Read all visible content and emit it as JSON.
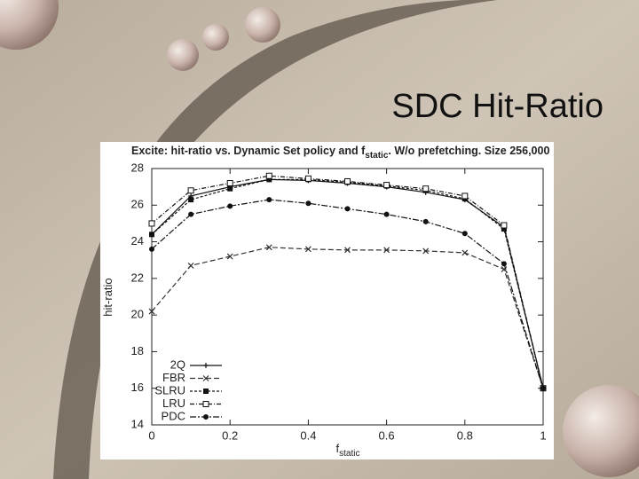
{
  "slide_title": "SDC Hit-Ratio",
  "chart_data": {
    "type": "line",
    "title": [
      "Excite: hit-ratio vs. Dynamic Set policy and f",
      "static",
      ". W/o prefetching. Size 256,000"
    ],
    "x_label": [
      "f",
      "static"
    ],
    "y_label": "hit-ratio",
    "x": [
      0,
      0.1,
      0.2,
      0.3,
      0.4,
      0.5,
      0.6,
      0.7,
      0.8,
      0.9,
      1
    ],
    "xlim": [
      0,
      1
    ],
    "xticks": [
      0,
      0.2,
      0.4,
      0.6,
      0.8,
      1
    ],
    "ylim": [
      14,
      28
    ],
    "yticks": [
      14,
      16,
      18,
      20,
      22,
      24,
      26,
      28
    ],
    "grid": false,
    "legend": "lower left",
    "series": [
      {
        "name": "2Q",
        "color": "#111111",
        "dash": "none",
        "marker": "plus",
        "values": [
          24.4,
          26.5,
          27.0,
          27.4,
          27.35,
          27.2,
          27.0,
          26.7,
          26.3,
          24.8,
          16.0
        ]
      },
      {
        "name": "FBR",
        "color": "#333333",
        "dash": "6,3",
        "marker": "cross",
        "values": [
          20.2,
          22.7,
          23.2,
          23.7,
          23.6,
          23.55,
          23.55,
          23.5,
          23.4,
          22.5,
          16.0
        ]
      },
      {
        "name": "SLRU",
        "color": "#111111",
        "dash": "3,2",
        "marker": "square",
        "values": [
          24.4,
          26.3,
          26.9,
          27.4,
          27.4,
          27.25,
          27.05,
          26.8,
          26.35,
          24.7,
          16.0
        ]
      },
      {
        "name": "LRU",
        "color": "#111111",
        "dash": "5,2,1,2",
        "marker": "open-square",
        "values": [
          25.0,
          26.8,
          27.2,
          27.6,
          27.45,
          27.3,
          27.1,
          26.9,
          26.5,
          24.9,
          16.0
        ]
      },
      {
        "name": "PDC",
        "color": "#111111",
        "dash": "7,2,2,2",
        "marker": "dot",
        "values": [
          23.6,
          25.5,
          25.95,
          26.3,
          26.1,
          25.8,
          25.5,
          25.1,
          24.45,
          22.8,
          16.0
        ]
      }
    ]
  }
}
